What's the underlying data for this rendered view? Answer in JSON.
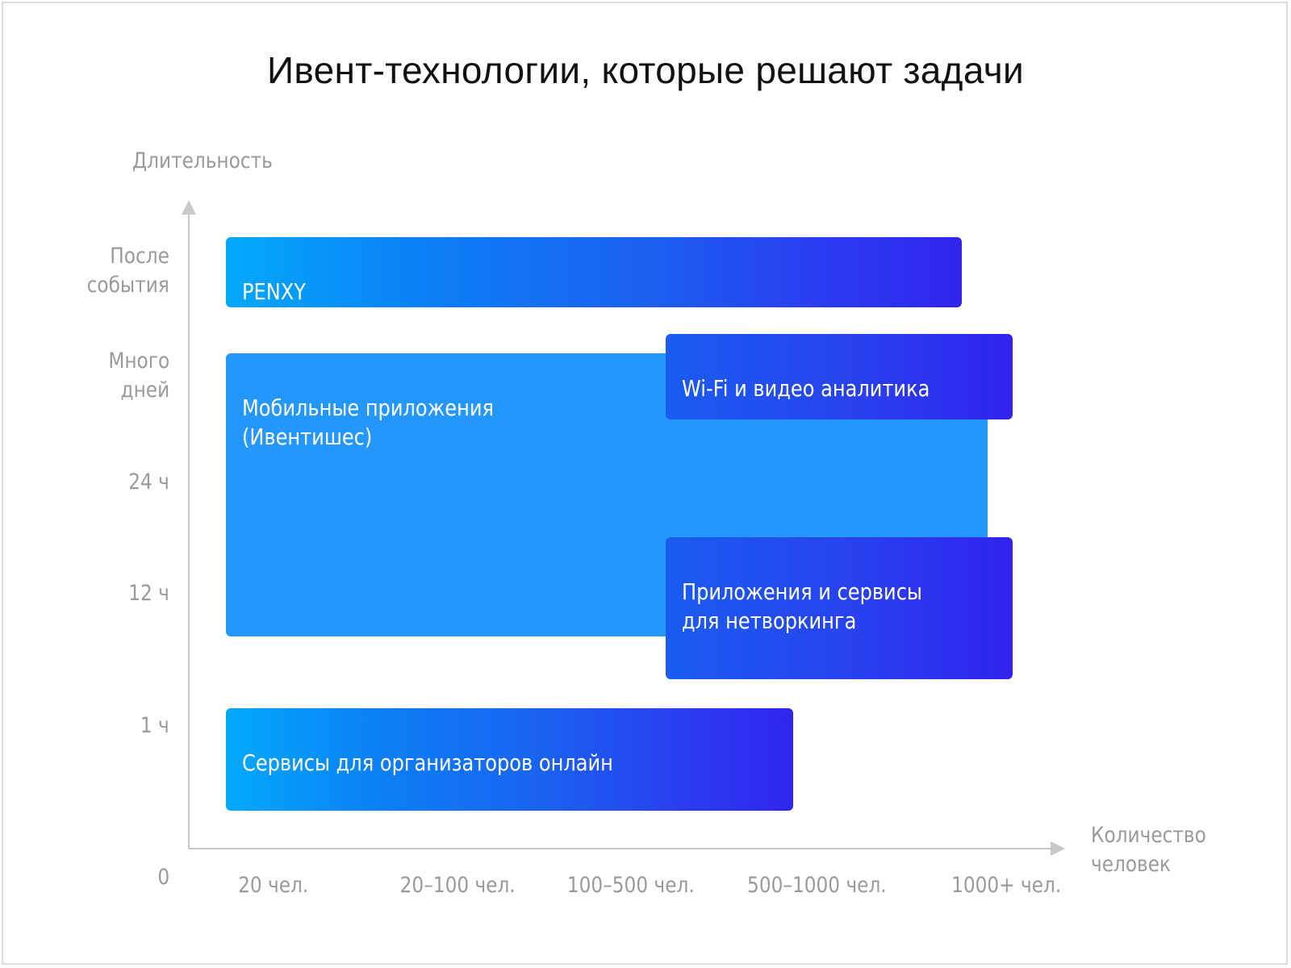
{
  "title": "Ивент-технологии, которые решают задачи",
  "axes": {
    "y_title": "Длительность",
    "x_title": "Количество\nчеловек",
    "origin_label": "0",
    "y_ticks": [
      "После\nсобытия",
      "Много\nдней",
      "24 ч",
      "12 ч",
      "1 ч"
    ],
    "x_ticks": [
      "20 чел.",
      "20–100 чел.",
      "100–500 чел.",
      "500–1000 чел.",
      "1000+ чел."
    ]
  },
  "blocks": {
    "penxy": "PENXY",
    "mobile": "Мобильные приложения\n(Ивентишес)",
    "wifi": "Wi-Fi и видео аналитика",
    "networking": "Приложения и сервисы\nдля нетворкинга",
    "online": "Сервисы для организаторов онлайн"
  },
  "colors": {
    "gradient_start": "#03a9fb",
    "gradient_end": "#3025ee",
    "solid_block": "#2497fc",
    "axis": "#c8c8c8",
    "label_gray": "#9a9a9a"
  }
}
